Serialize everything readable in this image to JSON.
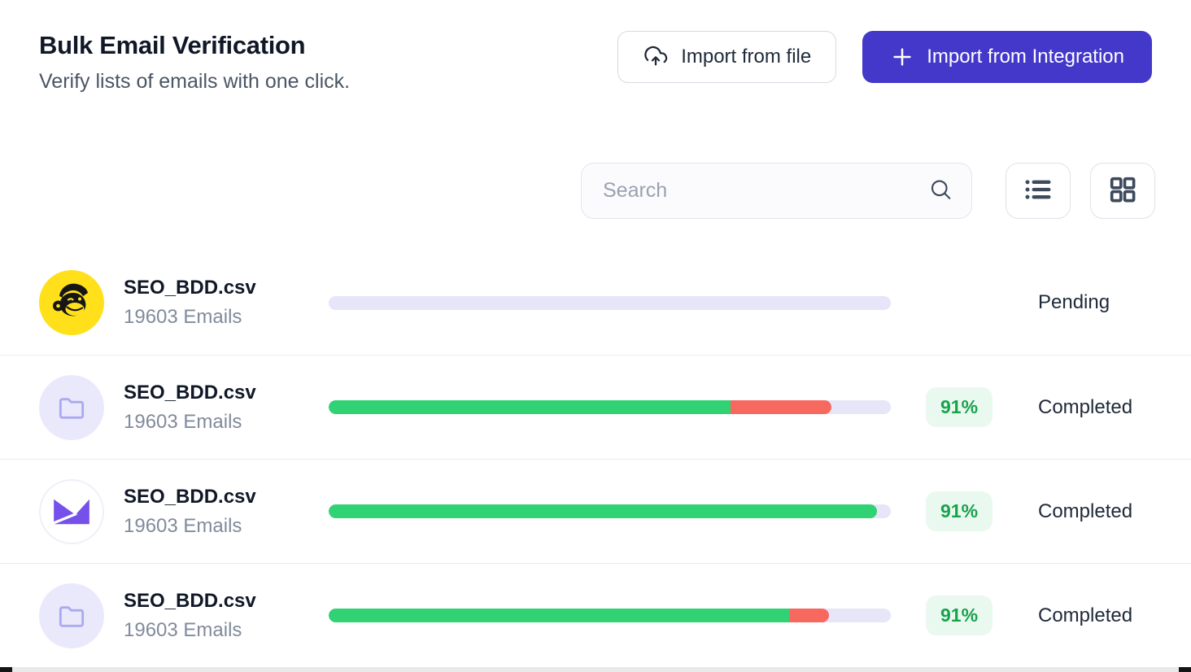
{
  "page": {
    "title": "Bulk Email Verification",
    "subtitle": "Verify lists of emails with one click."
  },
  "actions": {
    "import_file": "Import from file",
    "import_integration": "Import from Integration"
  },
  "toolbar": {
    "search_placeholder": "Search"
  },
  "colors": {
    "accent_indigo": "#4438ca",
    "success_green": "#31d273",
    "error_red": "#f7685f",
    "track_lavender": "#e7e5f8",
    "badge_bg": "#e9f9f0",
    "badge_text": "#17a34a",
    "mailchimp_yellow": "#ffe01b",
    "logo_purple": "#7650eb"
  },
  "rows": [
    {
      "icon": "mailchimp-logo",
      "file_name": "SEO_BDD.csv",
      "email_count": "19603 Emails",
      "status": "Pending",
      "badge": "",
      "progress": {
        "verified_pct": 0,
        "failed_pct": 0
      }
    },
    {
      "icon": "folder",
      "file_name": "SEO_BDD.csv",
      "email_count": "19603 Emails",
      "status": "Completed",
      "badge": "91%",
      "progress": {
        "verified_pct": 71.5,
        "failed_pct": 18
      }
    },
    {
      "icon": "envelope-logo",
      "file_name": "SEO_BDD.csv",
      "email_count": "19603 Emails",
      "status": "Completed",
      "badge": "91%",
      "progress": {
        "verified_pct": 97.5,
        "failed_pct": 0
      }
    },
    {
      "icon": "folder",
      "file_name": "SEO_BDD.csv",
      "email_count": "19603 Emails",
      "status": "Completed",
      "badge": "91%",
      "progress": {
        "verified_pct": 82,
        "failed_pct": 7
      }
    }
  ]
}
